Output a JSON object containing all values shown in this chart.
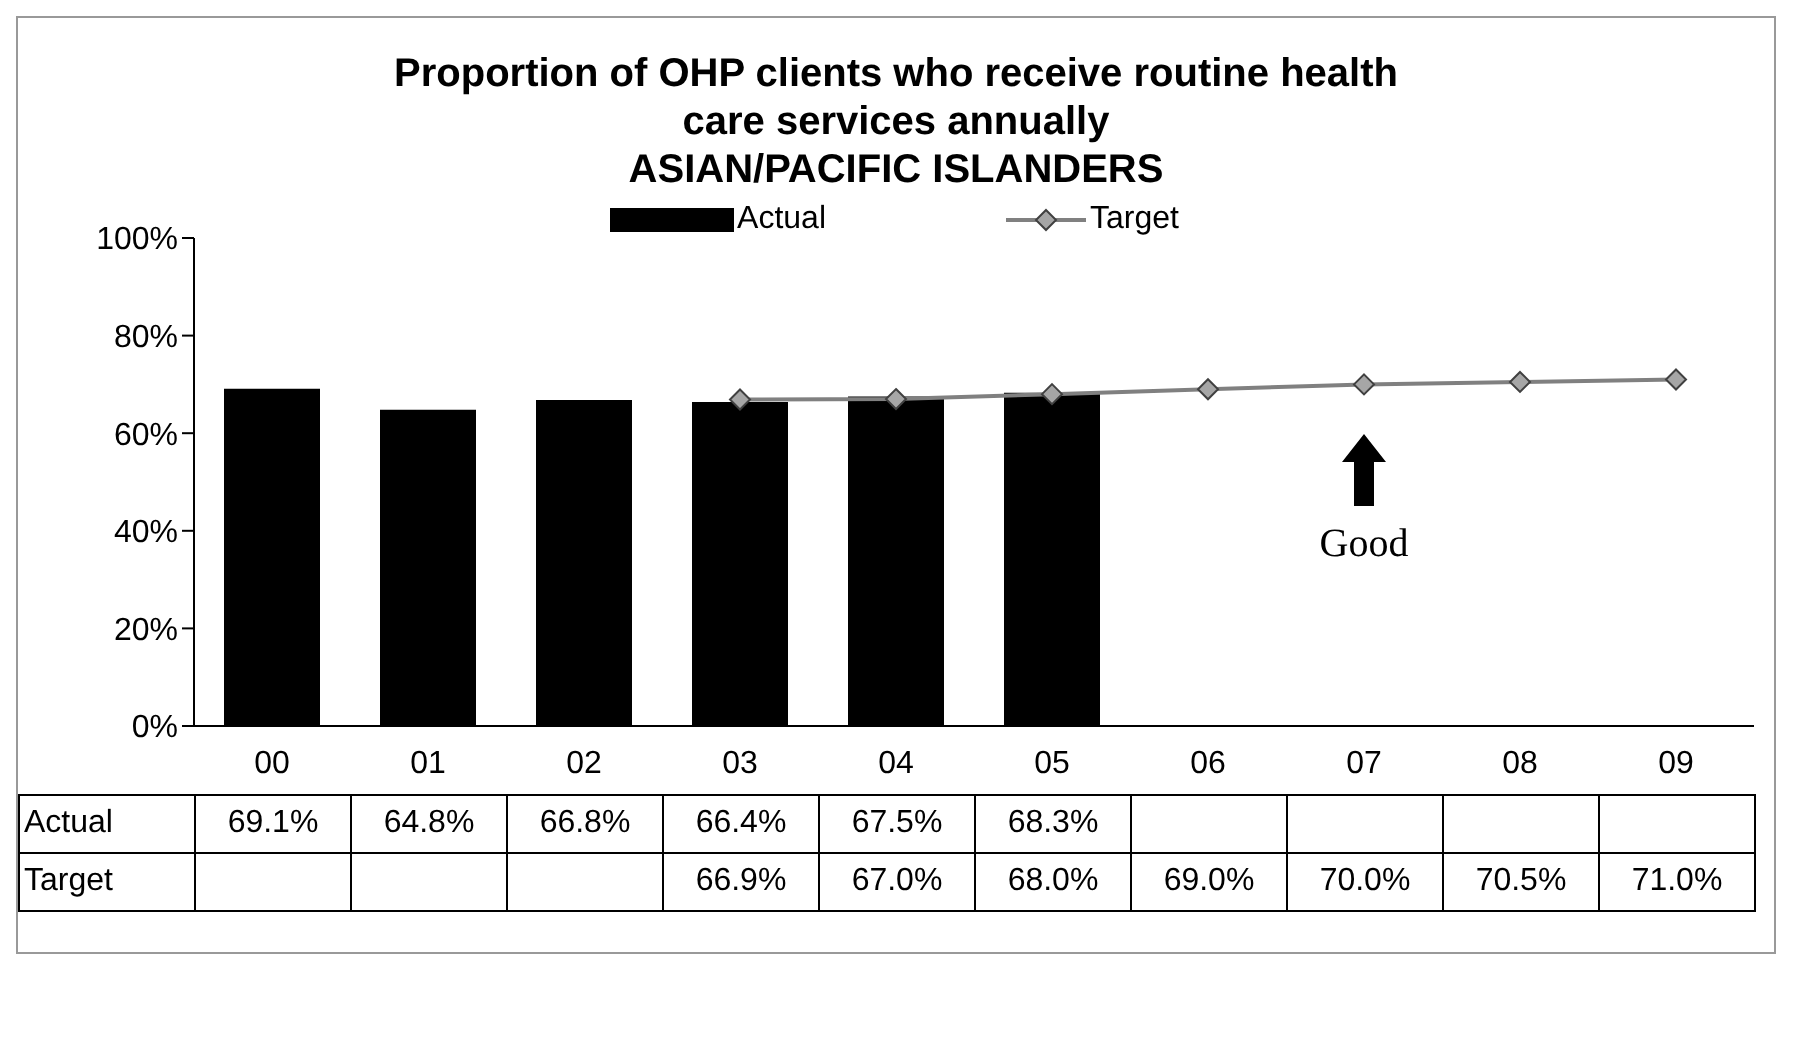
{
  "chart_data": {
    "type": "bar",
    "title": "Proportion of OHP clients who receive routine health care services annually",
    "subtitle": "ASIAN/PACIFIC ISLANDERS",
    "categories": [
      "00",
      "01",
      "02",
      "03",
      "04",
      "05",
      "06",
      "07",
      "08",
      "09"
    ],
    "series": [
      {
        "name": "Actual",
        "color": "#000000",
        "values": [
          69.1,
          64.8,
          66.8,
          66.4,
          67.5,
          68.3,
          null,
          null,
          null,
          null
        ],
        "value_labels": [
          "69.1%",
          "64.8%",
          "66.8%",
          "66.4%",
          "67.5%",
          "68.3%",
          null,
          null,
          null,
          null
        ]
      },
      {
        "name": "Target",
        "type": "line",
        "color": "#808080",
        "marker": "diamond",
        "line_style": "solid",
        "values": [
          null,
          null,
          null,
          66.9,
          67.0,
          68.0,
          69.0,
          70.0,
          70.5,
          71.0
        ],
        "value_labels": [
          null,
          null,
          null,
          "66.9%",
          "67.0%",
          "68.0%",
          "69.0%",
          "70.0%",
          "70.5%",
          "71.0%"
        ]
      }
    ],
    "ylim": [
      0,
      100
    ],
    "yticks": [
      {
        "value": 0,
        "label": "0%"
      },
      {
        "value": 20,
        "label": "20%"
      },
      {
        "value": 40,
        "label": "40%"
      },
      {
        "value": 60,
        "label": "60%"
      },
      {
        "value": 80,
        "label": "80%"
      },
      {
        "value": 100,
        "label": "100%"
      }
    ],
    "legend": "top",
    "annotations": [
      "Good"
    ]
  }
}
